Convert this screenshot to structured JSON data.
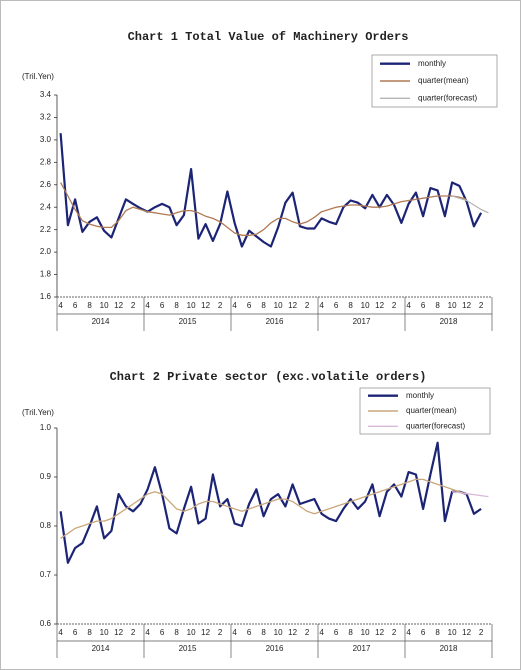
{
  "chart_data": [
    {
      "type": "line",
      "title": "Chart 1 Total Value of Machinery Orders",
      "ylabel": "(Tril.Yen)",
      "categories": [
        "4",
        null,
        "6",
        null,
        "8",
        null,
        "10",
        null,
        "12",
        null,
        "2",
        null,
        "4",
        null,
        "6",
        null,
        "8",
        null,
        "10",
        null,
        "12",
        null,
        "2",
        null,
        "4",
        null,
        "6",
        null,
        "8",
        null,
        "10",
        null,
        "12",
        null,
        "2",
        null,
        "4",
        null,
        "6",
        null,
        "8",
        null,
        "10",
        null,
        "12",
        null,
        "2",
        null,
        "4",
        null,
        "6",
        null,
        "8",
        null,
        "10",
        null,
        "12",
        null,
        "2",
        null
      ],
      "year_labels": [
        "2014",
        "2015",
        "2016",
        "2017",
        "2018"
      ],
      "ylim": [
        1.6,
        3.4
      ],
      "yticks": [
        1.6,
        1.8,
        {
          "value": 2,
          "label": "2.0"
        },
        2.2,
        2.4,
        2.6,
        2.8,
        {
          "value": 3,
          "label": "3.0"
        },
        3.2,
        3.4
      ],
      "legend": "upper right",
      "series": [
        {
          "name": "monthly",
          "color": "#1c2475",
          "values": [
            3.06,
            2.24,
            2.47,
            2.18,
            2.27,
            2.31,
            2.19,
            2.13,
            2.3,
            2.47,
            2.43,
            2.39,
            2.36,
            2.4,
            2.43,
            2.4,
            2.24,
            2.33,
            2.74,
            2.12,
            2.25,
            2.1,
            2.25,
            2.54,
            2.26,
            2.05,
            2.19,
            2.14,
            2.09,
            2.05,
            2.22,
            2.44,
            2.53,
            2.23,
            2.21,
            2.21,
            2.3,
            2.27,
            2.25,
            2.4,
            2.46,
            2.44,
            2.39,
            2.51,
            2.4,
            2.51,
            2.42,
            2.26,
            2.43,
            2.53,
            2.32,
            2.57,
            2.55,
            2.32,
            2.62,
            2.59,
            2.45,
            2.23,
            2.35,
            null
          ]
        },
        {
          "name": "quarter(mean)",
          "color": "#b07a55",
          "values": [
            2.62,
            2.5,
            2.38,
            2.28,
            2.25,
            2.23,
            2.22,
            2.22,
            2.28,
            2.37,
            2.4,
            2.38,
            2.36,
            2.35,
            2.34,
            2.33,
            2.35,
            2.37,
            2.37,
            2.35,
            2.32,
            2.3,
            2.27,
            2.22,
            2.17,
            2.15,
            2.15,
            2.16,
            2.2,
            2.26,
            2.3,
            2.3,
            2.27,
            2.25,
            2.27,
            2.31,
            2.36,
            2.38,
            2.4,
            2.41,
            2.42,
            2.42,
            2.41,
            2.4,
            2.4,
            2.41,
            2.43,
            2.45,
            2.46,
            2.47,
            2.48,
            2.49,
            2.5,
            2.5,
            2.5,
            2.49,
            2.47,
            null,
            null,
            null
          ]
        },
        {
          "name": "quarter(forecast)",
          "color": "#b5b5b5",
          "values": [
            null,
            null,
            null,
            null,
            null,
            null,
            null,
            null,
            null,
            null,
            null,
            null,
            null,
            null,
            null,
            null,
            null,
            null,
            null,
            null,
            null,
            null,
            null,
            null,
            null,
            null,
            null,
            null,
            null,
            null,
            null,
            null,
            null,
            null,
            null,
            null,
            null,
            null,
            null,
            null,
            null,
            null,
            null,
            null,
            null,
            null,
            null,
            null,
            null,
            null,
            null,
            null,
            null,
            null,
            2.5,
            2.48,
            2.46,
            2.42,
            2.38,
            2.35
          ]
        }
      ]
    },
    {
      "type": "line",
      "title": "Chart 2 Private sector (exc.volatile orders)",
      "ylabel": "(Tril.Yen)",
      "categories": [
        "4",
        null,
        "6",
        null,
        "8",
        null,
        "10",
        null,
        "12",
        null,
        "2",
        null,
        "4",
        null,
        "6",
        null,
        "8",
        null,
        "10",
        null,
        "12",
        null,
        "2",
        null,
        "4",
        null,
        "6",
        null,
        "8",
        null,
        "10",
        null,
        "12",
        null,
        "2",
        null,
        "4",
        null,
        "6",
        null,
        "8",
        null,
        "10",
        null,
        "12",
        null,
        "2",
        null,
        "4",
        null,
        "6",
        null,
        "8",
        null,
        "10",
        null,
        "12",
        null,
        "2",
        null
      ],
      "year_labels": [
        "2014",
        "2015",
        "2016",
        "2017",
        "2018"
      ],
      "ylim": [
        0.6,
        1.0
      ],
      "yticks": [
        0.6,
        0.7,
        0.8,
        0.9,
        {
          "value": 1,
          "label": "1.0"
        }
      ],
      "legend": "upper right",
      "series": [
        {
          "name": "monthly",
          "color": "#1c2475",
          "values": [
            0.83,
            0.725,
            0.755,
            0.765,
            0.8,
            0.84,
            0.775,
            0.79,
            0.865,
            0.84,
            0.83,
            0.845,
            0.875,
            0.92,
            0.865,
            0.795,
            0.785,
            0.835,
            0.88,
            0.805,
            0.815,
            0.905,
            0.84,
            0.855,
            0.805,
            0.8,
            0.845,
            0.875,
            0.82,
            0.855,
            0.865,
            0.84,
            0.885,
            0.845,
            0.85,
            0.855,
            0.825,
            0.815,
            0.81,
            0.835,
            0.855,
            0.835,
            0.85,
            0.885,
            0.82,
            0.87,
            0.885,
            0.86,
            0.91,
            0.905,
            0.835,
            0.905,
            0.97,
            0.81,
            0.87,
            0.87,
            0.865,
            0.825,
            0.835,
            null
          ]
        },
        {
          "name": "quarter(mean)",
          "color": "#c9a77c",
          "values": [
            0.775,
            0.785,
            0.795,
            0.8,
            0.805,
            0.81,
            0.81,
            0.815,
            0.825,
            0.835,
            0.845,
            0.855,
            0.865,
            0.87,
            0.865,
            0.85,
            0.835,
            0.83,
            0.835,
            0.845,
            0.85,
            0.85,
            0.845,
            0.84,
            0.835,
            0.83,
            0.835,
            0.84,
            0.845,
            0.85,
            0.855,
            0.855,
            0.85,
            0.84,
            0.83,
            0.825,
            0.83,
            0.835,
            0.84,
            0.845,
            0.85,
            0.855,
            0.86,
            0.865,
            0.87,
            0.875,
            0.88,
            0.885,
            0.89,
            0.895,
            0.895,
            0.89,
            0.885,
            0.88,
            0.875,
            0.87,
            0.865,
            null,
            null,
            null
          ]
        },
        {
          "name": "quarter(forecast)",
          "color": "#d9b9d9",
          "values": [
            null,
            null,
            null,
            null,
            null,
            null,
            null,
            null,
            null,
            null,
            null,
            null,
            null,
            null,
            null,
            null,
            null,
            null,
            null,
            null,
            null,
            null,
            null,
            null,
            null,
            null,
            null,
            null,
            null,
            null,
            null,
            null,
            null,
            null,
            null,
            null,
            null,
            null,
            null,
            null,
            null,
            null,
            null,
            null,
            null,
            null,
            null,
            null,
            null,
            null,
            null,
            null,
            null,
            null,
            0.87,
            0.868,
            0.866,
            0.864,
            0.862,
            0.86
          ]
        }
      ]
    }
  ]
}
